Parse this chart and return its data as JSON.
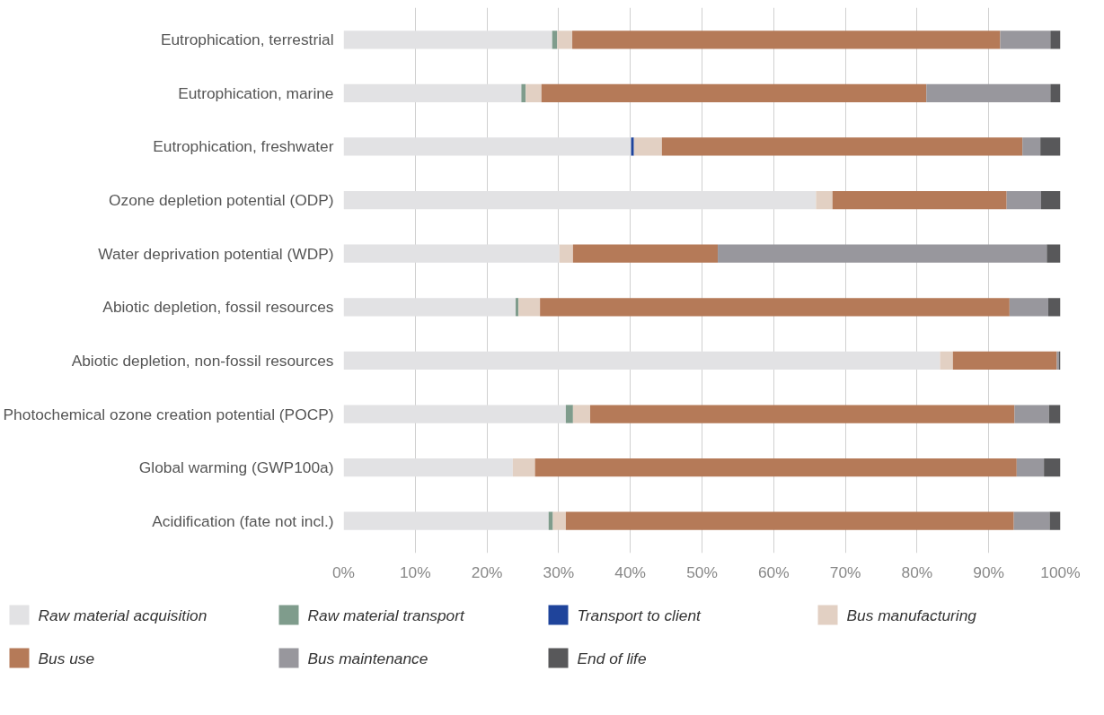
{
  "chart_data": {
    "type": "bar",
    "orientation": "horizontal",
    "stacked": true,
    "categories": [
      "Eutrophication, terrestrial",
      "Eutrophication, marine",
      "Eutrophication, freshwater",
      "Ozone depletion potential (ODP)",
      "Water deprivation potential (WDP)",
      "Abiotic depletion, fossil resources",
      "Abiotic depletion, non-fossil resources",
      "Photochemical ozone creation potential (POCP)",
      "Global warming (GWP100a)",
      "Acidification (fate not incl.)"
    ],
    "series": [
      {
        "name": "Raw material acquisition",
        "color": "#e2e2e4",
        "values": [
          29.1,
          24.8,
          40.1,
          65.9,
          30.1,
          24.0,
          83.2,
          31.0,
          23.6,
          28.6
        ]
      },
      {
        "name": "Raw material transport",
        "color": "#7f9c8c",
        "values": [
          0.7,
          0.6,
          0,
          0,
          0,
          0.4,
          0,
          1.0,
          0,
          0.6
        ]
      },
      {
        "name": "Transport to client",
        "color": "#1f449b",
        "values": [
          0,
          0,
          0.4,
          0,
          0,
          0,
          0,
          0,
          0,
          0
        ]
      },
      {
        "name": "Bus manufacturing",
        "color": "#e2d0c3",
        "values": [
          2.1,
          2.2,
          3.9,
          2.3,
          1.9,
          3.0,
          1.8,
          2.4,
          3.1,
          1.8
        ]
      },
      {
        "name": "Bus use",
        "color": "#b57a58",
        "values": [
          59.7,
          53.7,
          50.3,
          24.3,
          20.2,
          65.5,
          14.5,
          59.2,
          67.2,
          62.5
        ]
      },
      {
        "name": "Bus maintenance",
        "color": "#98979d",
        "values": [
          7.0,
          17.3,
          2.5,
          4.8,
          45.9,
          5.4,
          0.3,
          4.8,
          3.8,
          5.0
        ]
      },
      {
        "name": "End of life",
        "color": "#58585a",
        "values": [
          1.4,
          1.4,
          2.8,
          2.7,
          1.9,
          1.7,
          0.2,
          1.6,
          2.3,
          1.5
        ]
      }
    ],
    "xlim": [
      0,
      100
    ],
    "xticks": [
      {
        "value": 0,
        "label": "0%"
      },
      {
        "value": 10,
        "label": "10%"
      },
      {
        "value": 20,
        "label": "20%"
      },
      {
        "value": 30,
        "label": "30%"
      },
      {
        "value": 40,
        "label": "40%"
      },
      {
        "value": 50,
        "label": "50%"
      },
      {
        "value": 60,
        "label": "60%"
      },
      {
        "value": 70,
        "label": "70%"
      },
      {
        "value": 80,
        "label": "80%"
      },
      {
        "value": 90,
        "label": "90%"
      },
      {
        "value": 100,
        "label": "100%"
      }
    ],
    "grid": "x",
    "legend": "bottom"
  }
}
